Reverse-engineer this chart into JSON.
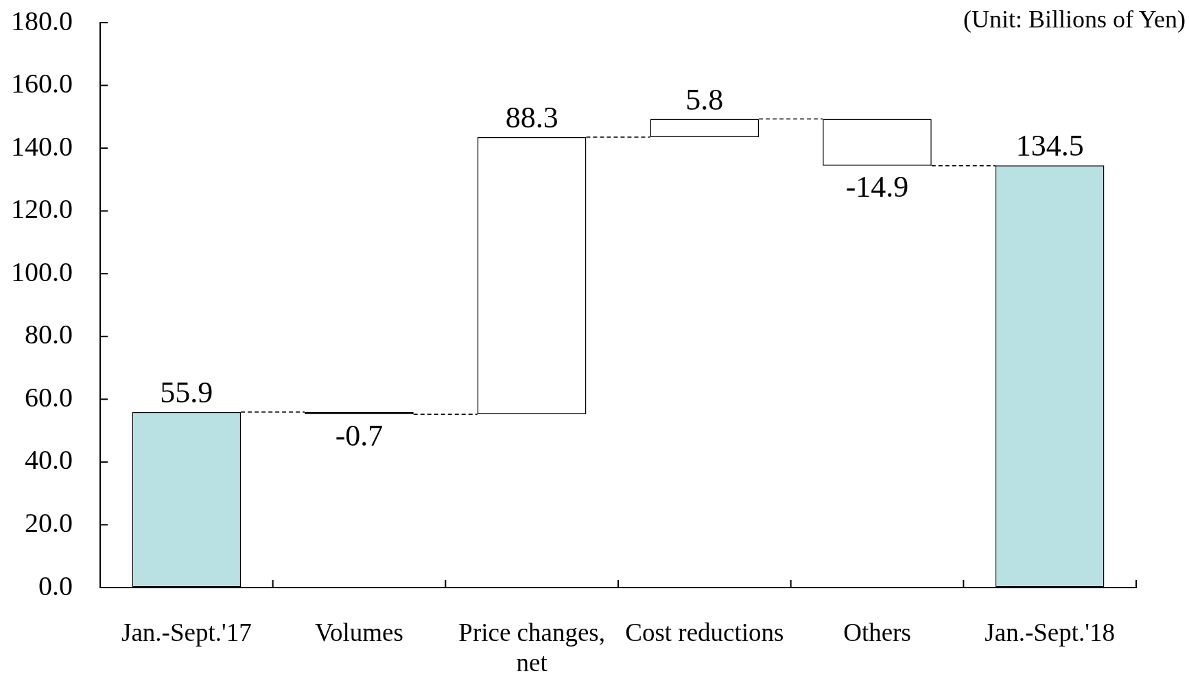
{
  "chart_data": {
    "type": "bar",
    "categories": [
      "Jan.-Sept.'17",
      "Volumes",
      "Price changes, net",
      "Cost reductions",
      "Others",
      "Jan.-Sept.'18"
    ],
    "values": [
      55.9,
      -0.7,
      88.3,
      5.8,
      -14.9,
      134.5
    ],
    "base": [
      0,
      55.9,
      55.2,
      143.5,
      149.3,
      0
    ],
    "colors": [
      "#b9e0e2",
      "#ffffff",
      "#ffffff",
      "#ffffff",
      "#ffffff",
      "#b9e0e2"
    ],
    "ylim": [
      0,
      180
    ],
    "yticks": [
      {
        "value": 0,
        "label": "0.0"
      },
      {
        "value": 20,
        "label": "20.0"
      },
      {
        "value": 40,
        "label": "40.0"
      },
      {
        "value": 60,
        "label": "60.0"
      },
      {
        "value": 80,
        "label": "80.0"
      },
      {
        "value": 100,
        "label": "100.0"
      },
      {
        "value": 120,
        "label": "120.0"
      },
      {
        "value": 140,
        "label": "140.0"
      },
      {
        "value": 160,
        "label": "160.0"
      },
      {
        "value": 180,
        "label": "180.0"
      }
    ],
    "data_labels": true,
    "annotations": [
      "(Unit: Billions of Yen)"
    ]
  }
}
